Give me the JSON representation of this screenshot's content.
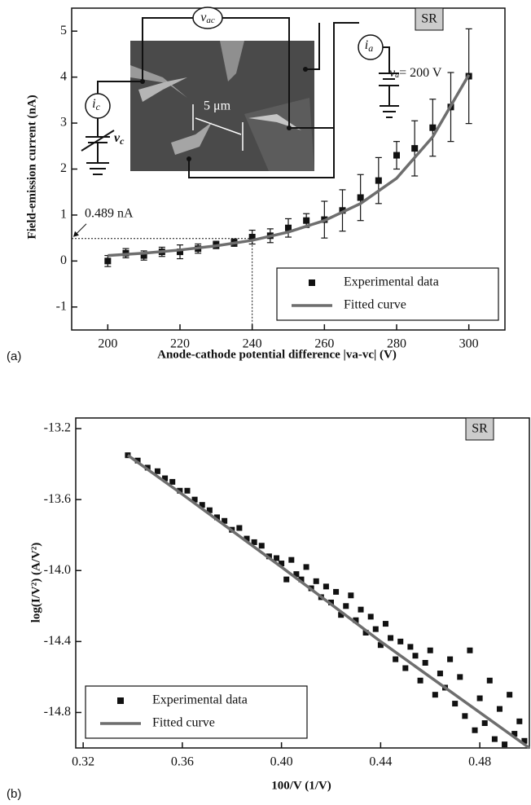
{
  "chart_data": [
    {
      "type": "scatter",
      "panel": "(a)",
      "badge": "SR",
      "xlabel": "Anode-cathode potential difference |va-vc|  (V)",
      "ylabel": "Field-emission current  (nA)",
      "xlim": [
        190,
        310
      ],
      "ylim": [
        -1.5,
        5.5
      ],
      "xticks": [
        200,
        220,
        240,
        260,
        280,
        300
      ],
      "yticks": [
        -1,
        0,
        1,
        2,
        3,
        4,
        5
      ],
      "legend": "lower right",
      "grid": false,
      "annotation": {
        "text": "0.489 nA",
        "x": 240,
        "y": 0.489
      },
      "inset_labels": [
        {
          "text": "v",
          "sub": "ac"
        },
        {
          "text": "i",
          "sub": "a"
        },
        {
          "text": "v",
          "sub": "a",
          "suffix": "= 200 V"
        },
        {
          "text": "i",
          "sub": "c"
        },
        {
          "text": "v",
          "sub": "c"
        },
        {
          "text": "5 μm"
        }
      ],
      "series": [
        {
          "name": "Experimental data",
          "type": "scatter",
          "color": "#111111",
          "x": [
            200,
            205,
            210,
            215,
            220,
            225,
            230,
            235,
            240,
            245,
            250,
            255,
            260,
            265,
            270,
            275,
            280,
            285,
            290,
            295,
            300
          ],
          "values": [
            0.0,
            0.17,
            0.12,
            0.2,
            0.2,
            0.27,
            0.35,
            0.4,
            0.52,
            0.55,
            0.72,
            0.88,
            0.9,
            1.1,
            1.38,
            1.75,
            2.3,
            2.45,
            2.9,
            3.35,
            4.02
          ],
          "errors": [
            0.12,
            0.1,
            0.1,
            0.1,
            0.15,
            0.1,
            0.08,
            0.08,
            0.15,
            0.15,
            0.2,
            0.15,
            0.4,
            0.45,
            0.5,
            0.5,
            0.3,
            0.6,
            0.62,
            0.75,
            1.03
          ]
        },
        {
          "name": "Fitted curve",
          "type": "line",
          "color": "#6e6e6e",
          "x": [
            200,
            210,
            220,
            230,
            240,
            250,
            260,
            270,
            280,
            290,
            300
          ],
          "values": [
            0.12,
            0.17,
            0.24,
            0.33,
            0.45,
            0.63,
            0.88,
            1.25,
            1.8,
            2.7,
            4.05
          ]
        }
      ]
    },
    {
      "type": "scatter",
      "panel": "(b)",
      "badge": "SR",
      "xlabel": "100/V  (1/V)",
      "ylabel": "log(I/V²)  (A/V²)",
      "xlim": [
        0.317,
        0.5
      ],
      "ylim": [
        -15.0,
        -13.14
      ],
      "xticks": [
        0.32,
        0.36,
        {
          "value": 0.4,
          "label": "0.40"
        },
        0.44,
        0.48
      ],
      "yticks": [
        -13.2,
        -13.6,
        {
          "value": -14,
          "label": "-14.0"
        },
        -14.4,
        -14.8
      ],
      "legend": "lower left",
      "grid": false,
      "series": [
        {
          "name": "Experimental data",
          "type": "scatter",
          "color": "#111111",
          "x": [
            0.338,
            0.342,
            0.346,
            0.35,
            0.353,
            0.356,
            0.359,
            0.362,
            0.365,
            0.368,
            0.371,
            0.374,
            0.377,
            0.38,
            0.383,
            0.386,
            0.389,
            0.392,
            0.395,
            0.398,
            0.4,
            0.402,
            0.404,
            0.406,
            0.408,
            0.41,
            0.412,
            0.414,
            0.416,
            0.418,
            0.42,
            0.422,
            0.424,
            0.426,
            0.428,
            0.43,
            0.432,
            0.434,
            0.436,
            0.438,
            0.44,
            0.442,
            0.444,
            0.446,
            0.448,
            0.45,
            0.452,
            0.454,
            0.456,
            0.458,
            0.46,
            0.462,
            0.464,
            0.466,
            0.468,
            0.47,
            0.472,
            0.474,
            0.476,
            0.478,
            0.48,
            0.482,
            0.484,
            0.486,
            0.488,
            0.49,
            0.492,
            0.494,
            0.496,
            0.498
          ],
          "values": [
            -13.35,
            -13.38,
            -13.42,
            -13.44,
            -13.48,
            -13.5,
            -13.55,
            -13.55,
            -13.6,
            -13.63,
            -13.66,
            -13.7,
            -13.72,
            -13.77,
            -13.76,
            -13.82,
            -13.84,
            -13.86,
            -13.92,
            -13.93,
            -13.96,
            -14.05,
            -13.94,
            -14.02,
            -14.05,
            -13.98,
            -14.1,
            -14.06,
            -14.15,
            -14.09,
            -14.18,
            -14.12,
            -14.25,
            -14.2,
            -14.14,
            -14.28,
            -14.22,
            -14.35,
            -14.26,
            -14.33,
            -14.42,
            -14.3,
            -14.38,
            -14.5,
            -14.4,
            -14.55,
            -14.43,
            -14.48,
            -14.62,
            -14.52,
            -14.45,
            -14.7,
            -14.58,
            -14.66,
            -14.5,
            -14.75,
            -14.6,
            -14.82,
            -14.45,
            -14.9,
            -14.72,
            -14.86,
            -14.62,
            -14.95,
            -14.78,
            -14.98,
            -14.7,
            -14.92,
            -14.85,
            -14.96
          ]
        },
        {
          "name": "Fitted curve",
          "type": "line",
          "color": "#6e6e6e",
          "x": [
            0.338,
            0.36,
            0.4,
            0.44,
            0.48,
            0.5
          ],
          "values": [
            -13.35,
            -13.57,
            -13.98,
            -14.4,
            -14.8,
            -15.0
          ]
        }
      ]
    }
  ]
}
